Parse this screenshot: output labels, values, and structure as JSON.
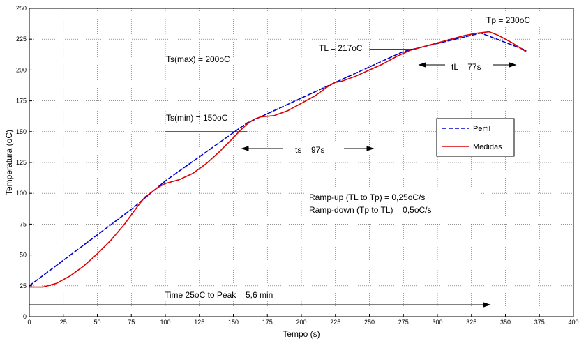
{
  "chart_data": {
    "type": "line",
    "xlabel": "Tempo (s)",
    "ylabel": "Temperatura (oC)",
    "xlim": [
      0,
      400
    ],
    "ylim": [
      0,
      250
    ],
    "x_ticks": [
      "0",
      "25",
      "50",
      "75",
      "100",
      "125",
      "150",
      "175",
      "200",
      "225",
      "250",
      "275",
      "300",
      "325",
      "350",
      "375",
      "400"
    ],
    "y_ticks": [
      "0",
      "25",
      "50",
      "75",
      "100",
      "125",
      "150",
      "175",
      "200",
      "225",
      "250"
    ],
    "grid": true,
    "legend_position": "right",
    "series": [
      {
        "name": "Perfil",
        "color": "#0000cc",
        "style": "dashed",
        "points": [
          [
            0,
            25
          ],
          [
            75,
            87
          ],
          [
            100,
            110
          ],
          [
            160,
            157
          ],
          [
            170,
            162
          ],
          [
            225,
            190
          ],
          [
            275,
            215
          ],
          [
            332,
            230
          ],
          [
            365,
            216
          ]
        ]
      },
      {
        "name": "Medidas",
        "color": "#dd0000",
        "style": "solid",
        "points": [
          [
            0,
            24
          ],
          [
            10,
            24
          ],
          [
            20,
            27
          ],
          [
            30,
            33
          ],
          [
            40,
            41
          ],
          [
            50,
            51
          ],
          [
            60,
            62
          ],
          [
            70,
            75
          ],
          [
            80,
            90
          ],
          [
            85,
            97
          ],
          [
            90,
            101
          ],
          [
            95,
            105
          ],
          [
            100,
            108
          ],
          [
            110,
            111
          ],
          [
            120,
            116
          ],
          [
            130,
            124
          ],
          [
            140,
            134
          ],
          [
            150,
            145
          ],
          [
            155,
            151
          ],
          [
            160,
            156
          ],
          [
            165,
            160
          ],
          [
            170,
            162
          ],
          [
            180,
            163
          ],
          [
            190,
            167
          ],
          [
            200,
            173
          ],
          [
            210,
            179
          ],
          [
            220,
            187
          ],
          [
            225,
            190
          ],
          [
            230,
            191
          ],
          [
            240,
            195
          ],
          [
            250,
            200
          ],
          [
            260,
            205
          ],
          [
            270,
            211
          ],
          [
            280,
            216
          ],
          [
            290,
            219
          ],
          [
            300,
            222
          ],
          [
            310,
            225
          ],
          [
            320,
            228
          ],
          [
            330,
            230
          ],
          [
            338,
            231
          ],
          [
            345,
            228
          ],
          [
            355,
            222
          ],
          [
            365,
            215
          ]
        ]
      }
    ],
    "annotations": {
      "tp": "Tp = 230oC",
      "tl": "TL = 217oC",
      "tsmax": "Ts(max) = 200oC",
      "tl_time": "tL = 77s",
      "tsmin": "Ts(min) = 150oC",
      "ts_time": "ts = 97s",
      "ramp_up": "Ramp-up (TL to Tp) = 0,25oC/s",
      "ramp_down": "Ramp-down (Tp to TL) = 0,5oC/s",
      "time_to_peak": "Time 25oC to Peak = 5,6 min"
    }
  }
}
